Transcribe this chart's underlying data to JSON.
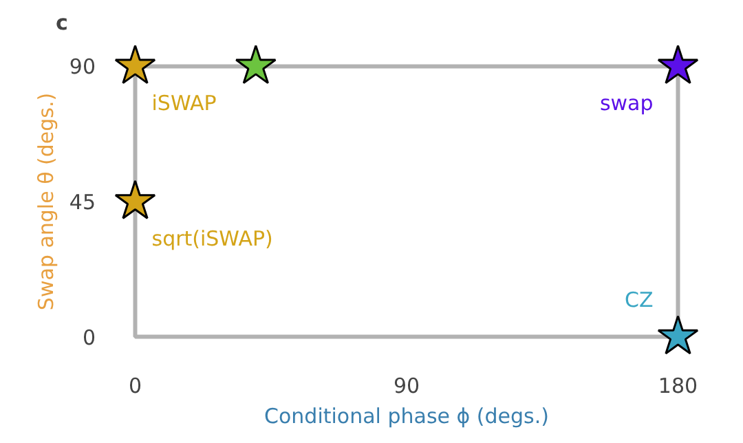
{
  "chart_data": {
    "type": "scatter",
    "title": "c",
    "xlabel": "Conditional phase ϕ (degs.)",
    "ylabel": "Swap angle θ (degs.)",
    "xlim": [
      0,
      180
    ],
    "ylim": [
      0,
      90
    ],
    "xticks": [
      0,
      90,
      180
    ],
    "yticks": [
      0,
      45,
      90
    ],
    "grid": false,
    "legend": false,
    "marker": "star",
    "series": [
      {
        "name": "iSWAP",
        "color": "#d4a418",
        "x": [
          0
        ],
        "values": [
          90
        ]
      },
      {
        "color": "#6cc43f",
        "x": [
          40
        ],
        "values": [
          90
        ]
      },
      {
        "name": "swap",
        "color": "#5b10e8",
        "x": [
          180
        ],
        "values": [
          90
        ]
      },
      {
        "name": "sqrt(iSWAP)",
        "color": "#d4a418",
        "x": [
          0
        ],
        "values": [
          45
        ]
      },
      {
        "name": "CZ",
        "color": "#3aa6c4",
        "x": [
          180
        ],
        "values": [
          0
        ]
      }
    ]
  }
}
